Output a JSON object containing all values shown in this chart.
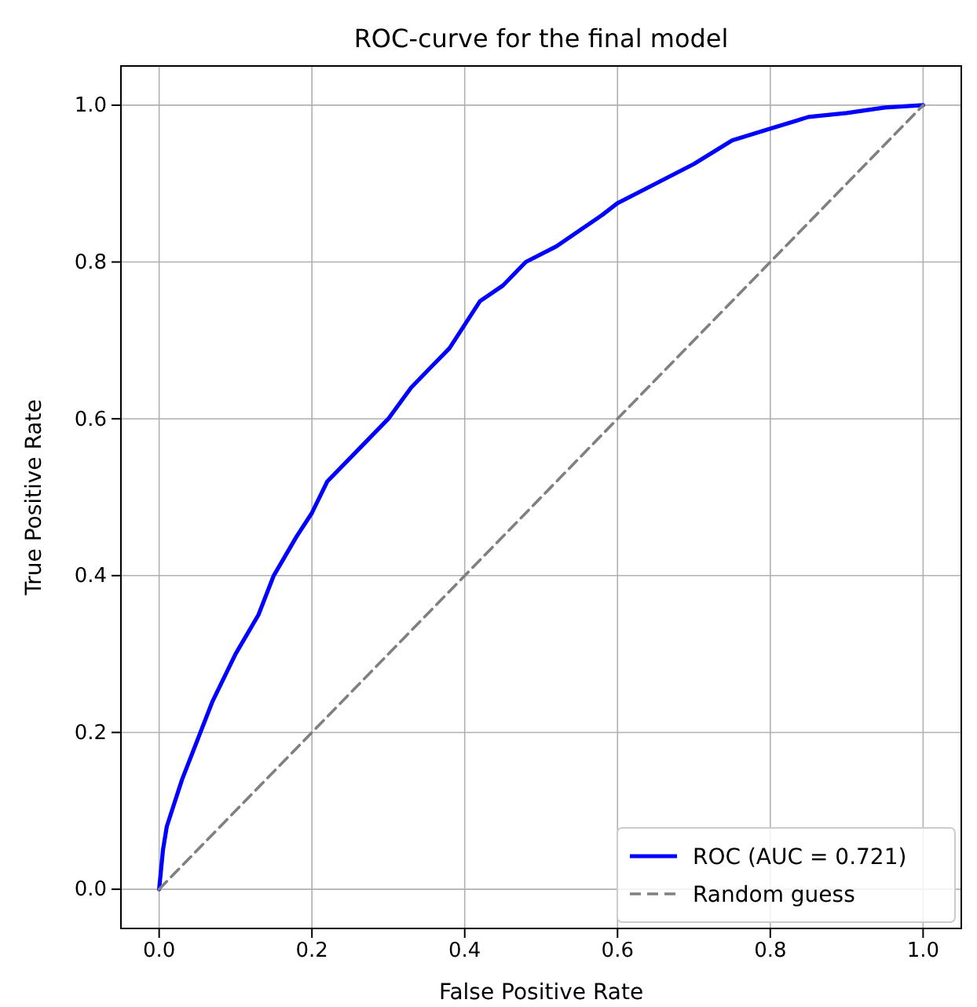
{
  "chart_data": {
    "type": "line",
    "title": "ROC-curve for the final model",
    "xlabel": "False Positive Rate",
    "ylabel": "True Positive Rate",
    "xlim": [
      -0.05,
      1.05
    ],
    "ylim": [
      -0.05,
      1.05
    ],
    "xticks": [
      {
        "value": 0,
        "label": "0.0"
      },
      {
        "value": 0.2,
        "label": "0.2"
      },
      {
        "value": 0.4,
        "label": "0.4"
      },
      {
        "value": 0.6,
        "label": "0.6"
      },
      {
        "value": 0.8,
        "label": "0.8"
      },
      {
        "value": 1,
        "label": "1.0"
      }
    ],
    "yticks": [
      {
        "value": 0,
        "label": "0.0"
      },
      {
        "value": 0.2,
        "label": "0.2"
      },
      {
        "value": 0.4,
        "label": "0.4"
      },
      {
        "value": 0.6,
        "label": "0.6"
      },
      {
        "value": 0.8,
        "label": "0.8"
      },
      {
        "value": 1,
        "label": "1.0"
      }
    ],
    "grid": true,
    "legend": "bottom right",
    "series": [
      {
        "name": "ROC (AUC = 0.721)",
        "color": "#0000ff",
        "line_style": "solid",
        "x": [
          0,
          0.005,
          0.01,
          0.02,
          0.03,
          0.05,
          0.07,
          0.1,
          0.13,
          0.15,
          0.18,
          0.2,
          0.22,
          0.25,
          0.28,
          0.3,
          0.33,
          0.36,
          0.38,
          0.4,
          0.42,
          0.45,
          0.48,
          0.52,
          0.55,
          0.58,
          0.6,
          0.65,
          0.7,
          0.75,
          0.8,
          0.85,
          0.9,
          0.95,
          1
        ],
        "values": [
          0,
          0.05,
          0.08,
          0.11,
          0.14,
          0.19,
          0.24,
          0.3,
          0.35,
          0.4,
          0.45,
          0.48,
          0.52,
          0.55,
          0.58,
          0.6,
          0.64,
          0.67,
          0.69,
          0.72,
          0.75,
          0.77,
          0.8,
          0.82,
          0.84,
          0.86,
          0.875,
          0.9,
          0.925,
          0.955,
          0.97,
          0.985,
          0.99,
          0.997,
          1
        ]
      },
      {
        "name": "Random guess",
        "color": "#808080",
        "line_style": "dashed",
        "x": [
          0,
          1
        ],
        "values": [
          0,
          1
        ]
      }
    ]
  }
}
